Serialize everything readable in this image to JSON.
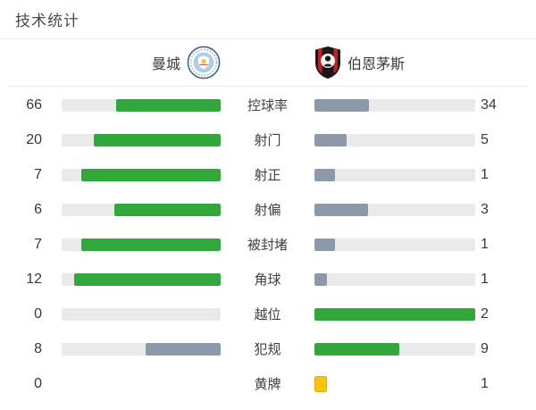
{
  "title": "技术统计",
  "teams": {
    "home": {
      "name": "曼城",
      "crest": "man-city-crest"
    },
    "away": {
      "name": "伯恩茅斯",
      "crest": "bournemouth-crest"
    }
  },
  "colors": {
    "win_bar": "#32a83c",
    "lose_bar": "#8c99a9",
    "track": "#eaeaea",
    "yellow_card": "#fdc40d",
    "yellow_card_border": "#eca50c"
  },
  "stats": {
    "rows": [
      {
        "label": "控球率",
        "home": 66,
        "away": 34
      },
      {
        "label": "射门",
        "home": 20,
        "away": 5
      },
      {
        "label": "射正",
        "home": 7,
        "away": 1
      },
      {
        "label": "射偏",
        "home": 6,
        "away": 3
      },
      {
        "label": "被封堵",
        "home": 7,
        "away": 1
      },
      {
        "label": "角球",
        "home": 12,
        "away": 1
      },
      {
        "label": "越位",
        "home": 0,
        "away": 2
      },
      {
        "label": "犯规",
        "home": 8,
        "away": 9
      },
      {
        "label": "黄牌",
        "home": 0,
        "away": 1,
        "display": "card"
      }
    ]
  }
}
